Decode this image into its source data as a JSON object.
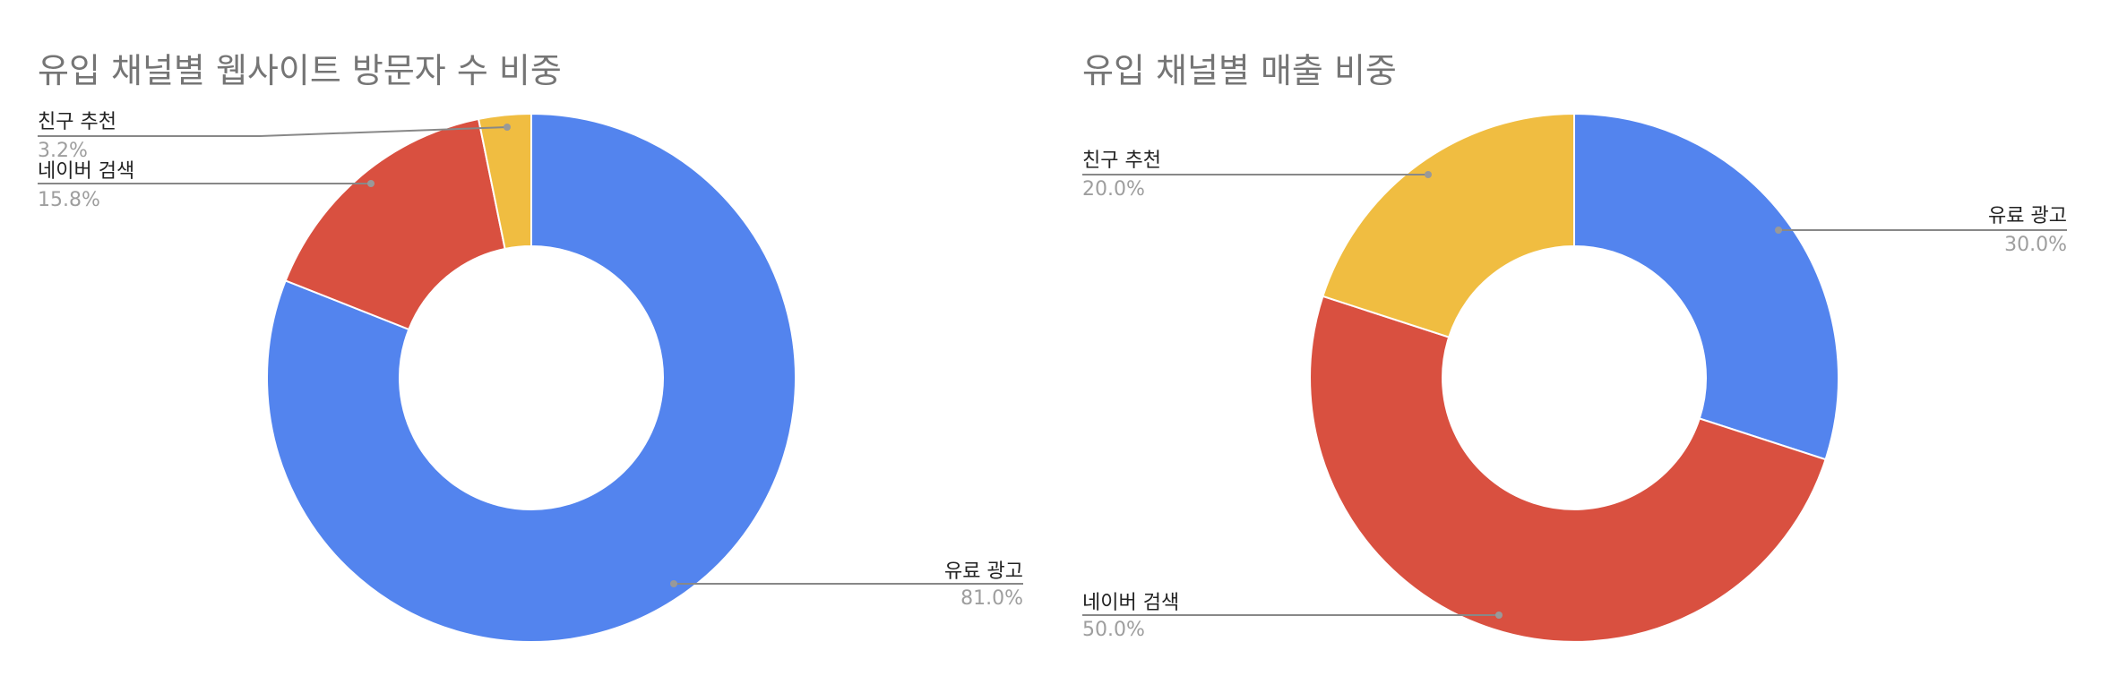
{
  "chart_data": [
    {
      "type": "pie",
      "donut": true,
      "title": "유입 채널별 웹사이트 방문자 수 비중",
      "categories": [
        "유료 광고",
        "네이버 검색",
        "친구 추천"
      ],
      "values": [
        81.0,
        15.8,
        3.2
      ],
      "labels": [
        "81.0%",
        "15.8%",
        "3.2%"
      ],
      "colors": [
        "#5384EE",
        "#D95040",
        "#F0BD41"
      ],
      "legend": "none"
    },
    {
      "type": "pie",
      "donut": true,
      "title": "유입 채널별 매출 비중",
      "categories": [
        "유료 광고",
        "네이버 검색",
        "친구 추천"
      ],
      "values": [
        30.0,
        50.0,
        20.0
      ],
      "labels": [
        "30.0%",
        "50.0%",
        "20.0%"
      ],
      "colors": [
        "#5384EE",
        "#D95040",
        "#F0BD41"
      ],
      "legend": "none"
    }
  ]
}
